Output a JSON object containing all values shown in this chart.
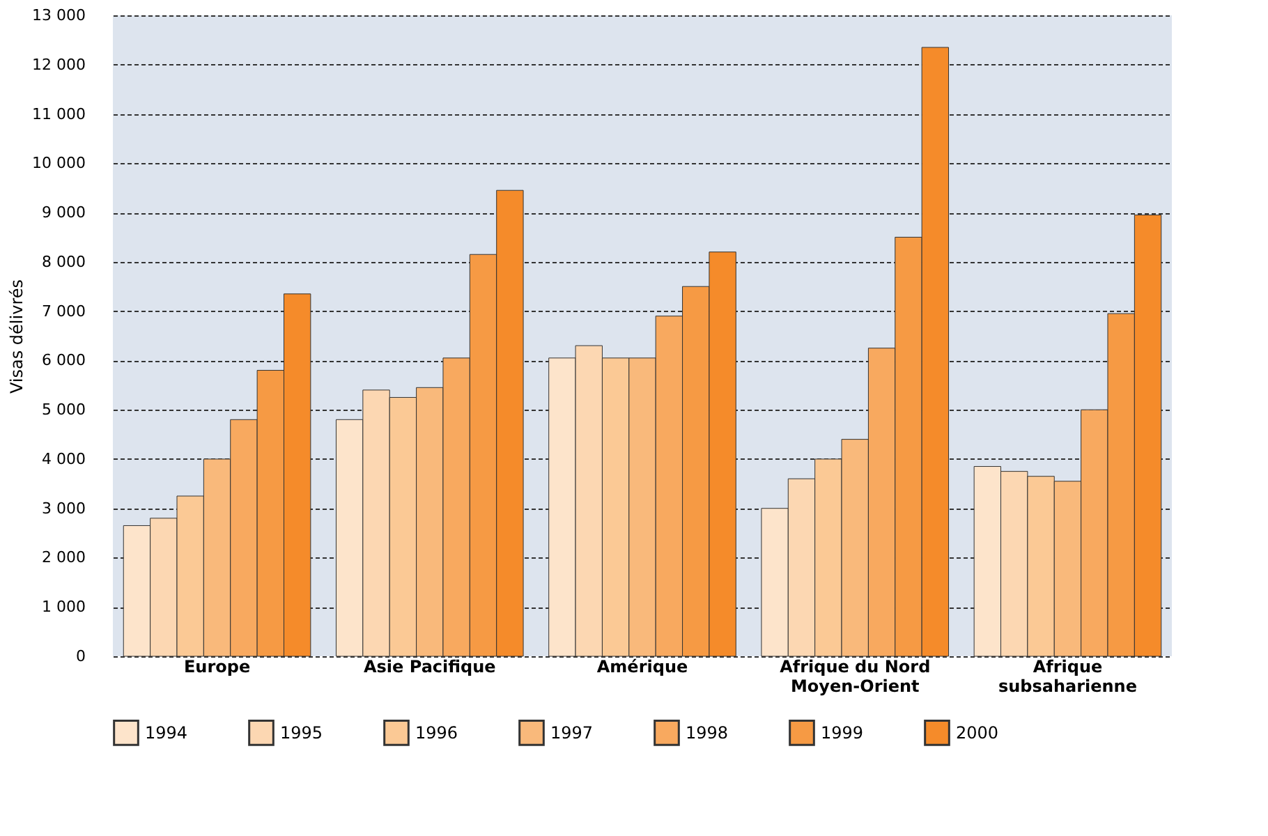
{
  "chart_data": {
    "type": "bar",
    "ylabel": "Visas délivrés",
    "categories": [
      "Europe",
      "Asie Pacifique",
      "Amérique",
      "Afrique du Nord\nMoyen-Orient",
      "Afrique\nsubsaharienne"
    ],
    "series": [
      {
        "name": "1994",
        "color": "#fde4cb",
        "values": [
          2650,
          4800,
          6050,
          3000,
          3850
        ]
      },
      {
        "name": "1995",
        "color": "#fcd7b2",
        "values": [
          2800,
          5400,
          6300,
          3600,
          3750
        ]
      },
      {
        "name": "1996",
        "color": "#fbc995",
        "values": [
          3250,
          5250,
          6050,
          4000,
          3650
        ]
      },
      {
        "name": "1997",
        "color": "#f9b97b",
        "values": [
          4000,
          5450,
          6050,
          4400,
          3550
        ]
      },
      {
        "name": "1998",
        "color": "#f8a95f",
        "values": [
          4800,
          6050,
          6900,
          6250,
          5000
        ]
      },
      {
        "name": "1999",
        "color": "#f69a44",
        "values": [
          5800,
          8150,
          7500,
          8500,
          6950
        ]
      },
      {
        "name": "2000",
        "color": "#f58b2a",
        "values": [
          7350,
          9450,
          8200,
          12350,
          8950
        ]
      }
    ],
    "ylim": [
      0,
      13000
    ],
    "yticks": [
      0,
      {
        "value": 1000,
        "label": "1 000"
      },
      {
        "value": 2000,
        "label": "2 000"
      },
      {
        "value": 3000,
        "label": "3 000"
      },
      {
        "value": 4000,
        "label": "4 000"
      },
      {
        "value": 5000,
        "label": "5 000"
      },
      {
        "value": 6000,
        "label": "6 000"
      },
      {
        "value": 7000,
        "label": "7 000"
      },
      {
        "value": 8000,
        "label": "8 000"
      },
      {
        "value": 9000,
        "label": "9 000"
      },
      {
        "value": 10000,
        "label": "10 000"
      },
      {
        "value": 11000,
        "label": "11 000"
      },
      {
        "value": 12000,
        "label": "12 000"
      },
      {
        "value": 13000,
        "label": "13 000"
      }
    ],
    "grid": "y",
    "legend": "bottom"
  }
}
